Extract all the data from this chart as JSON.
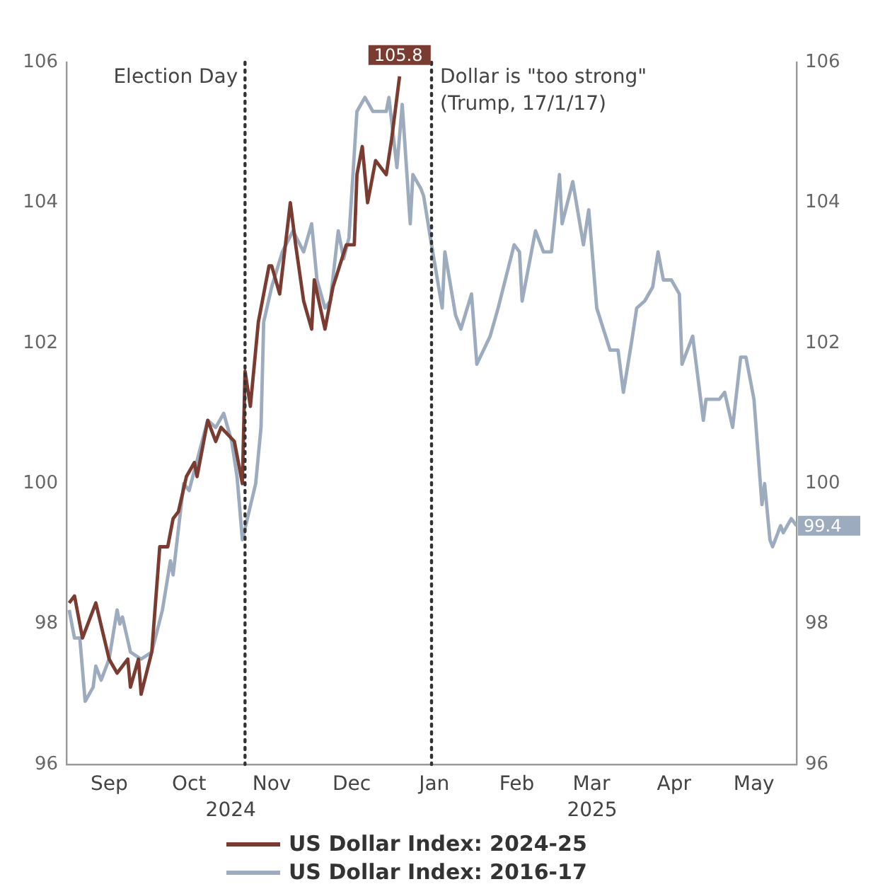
{
  "chart_data": {
    "type": "line",
    "xlim": [
      "2024-08-30",
      "2025-05-31"
    ],
    "xticks": [
      {
        "value": "2024-09-15",
        "label": "Sep"
      },
      {
        "value": "2024-10-15",
        "label": "Oct"
      },
      {
        "value": "2024-11-15",
        "label": "Nov"
      },
      {
        "value": "2024-12-15",
        "label": "Dec"
      },
      {
        "value": "2025-01-15",
        "label": "Jan"
      },
      {
        "value": "2025-02-15",
        "label": "Feb"
      },
      {
        "value": "2025-03-15",
        "label": "Mar"
      },
      {
        "value": "2025-04-15",
        "label": "Apr"
      },
      {
        "value": "2025-05-15",
        "label": "May"
      }
    ],
    "ylim": [
      96,
      106
    ],
    "yticks": [
      96,
      98,
      100,
      102,
      104,
      106
    ],
    "y2lim": [
      96,
      106
    ],
    "y2ticks": [
      96,
      98,
      100,
      102,
      104,
      106
    ],
    "grid": false,
    "legend": "bottom",
    "marker": "none",
    "line_style": "solid",
    "ref_lines": [
      {
        "axis": "x",
        "value": "2024-11-05",
        "label": "Election Day",
        "line_style": "dotted",
        "color": "#333333"
      },
      {
        "axis": "x",
        "value": "2025-01-14",
        "label": "Dollar is \"too strong\"\n(Trump, 17/1/17)",
        "line_style": "dotted",
        "color": "#333333"
      }
    ],
    "annotations": [
      "2024",
      "2025"
    ],
    "series": [
      {
        "name": "US Dollar Index: 2024-25",
        "color": "#7a3b30",
        "x": [
          "2024-08-31",
          "2024-09-02",
          "2024-09-05",
          "2024-09-10",
          "2024-09-15",
          "2024-09-18",
          "2024-09-22",
          "2024-09-23",
          "2024-09-26",
          "2024-09-27",
          "2024-10-01",
          "2024-10-04",
          "2024-10-07",
          "2024-10-09",
          "2024-10-11",
          "2024-10-14",
          "2024-10-17",
          "2024-10-18",
          "2024-10-22",
          "2024-10-25",
          "2024-10-27",
          "2024-11-01",
          "2024-11-02",
          "2024-11-04",
          "2024-11-05",
          "2024-11-07",
          "2024-11-10",
          "2024-11-14",
          "2024-11-15",
          "2024-11-18",
          "2024-11-22",
          "2024-11-24",
          "2024-11-27",
          "2024-11-30",
          "2024-12-01",
          "2024-12-05",
          "2024-12-08",
          "2024-12-13",
          "2024-12-16",
          "2024-12-17",
          "2024-12-19",
          "2024-12-21",
          "2024-12-24",
          "2024-12-28",
          "2024-12-30",
          "2025-01-02"
        ],
        "values": [
          98.3,
          98.4,
          97.8,
          98.3,
          97.5,
          97.3,
          97.5,
          97.1,
          97.5,
          97.0,
          97.6,
          99.1,
          99.1,
          99.5,
          99.6,
          100.1,
          100.3,
          100.1,
          100.9,
          100.6,
          100.8,
          100.6,
          100.4,
          100.0,
          101.6,
          101.1,
          102.3,
          103.1,
          103.1,
          102.7,
          104.0,
          103.4,
          102.6,
          102.2,
          102.9,
          102.2,
          102.8,
          103.4,
          103.4,
          104.4,
          104.8,
          104.0,
          104.6,
          104.4,
          104.9,
          105.8
        ],
        "value_labels": [
          null,
          null,
          null,
          null,
          null,
          null,
          null,
          null,
          null,
          null,
          null,
          null,
          null,
          null,
          null,
          null,
          null,
          null,
          null,
          null,
          null,
          null,
          null,
          null,
          null,
          null,
          null,
          null,
          null,
          null,
          null,
          null,
          null,
          null,
          null,
          null,
          null,
          null,
          null,
          null,
          null,
          null,
          null,
          null,
          null,
          "105.8"
        ]
      },
      {
        "name": "US Dollar Index: 2016-17",
        "color": "#9cabbd",
        "x": [
          "2024-08-31",
          "2024-09-02",
          "2024-09-04",
          "2024-09-06",
          "2024-09-09",
          "2024-09-10",
          "2024-09-12",
          "2024-09-15",
          "2024-09-18",
          "2024-09-19",
          "2024-09-20",
          "2024-09-23",
          "2024-09-27",
          "2024-10-01",
          "2024-10-05",
          "2024-10-08",
          "2024-10-09",
          "2024-10-13",
          "2024-10-15",
          "2024-10-22",
          "2024-10-25",
          "2024-10-28",
          "2024-10-31",
          "2024-11-02",
          "2024-11-04",
          "2024-11-09",
          "2024-11-11",
          "2024-11-12",
          "2024-11-15",
          "2024-11-19",
          "2024-11-23",
          "2024-11-27",
          "2024-11-30",
          "2024-12-02",
          "2024-12-05",
          "2024-12-07",
          "2024-12-10",
          "2024-12-12",
          "2024-12-14",
          "2024-12-17",
          "2024-12-20",
          "2024-12-23",
          "2024-12-25",
          "2024-12-28",
          "2024-12-29",
          "2025-01-01",
          "2025-01-03",
          "2025-01-06",
          "2025-01-07",
          "2025-01-10",
          "2025-01-11",
          "2025-01-14",
          "2025-01-18",
          "2025-01-19",
          "2025-01-23",
          "2025-01-25",
          "2025-01-29",
          "2025-01-31",
          "2025-02-05",
          "2025-02-08",
          "2025-02-14",
          "2025-02-16",
          "2025-02-17",
          "2025-02-22",
          "2025-02-25",
          "2025-02-28",
          "2025-03-03",
          "2025-03-04",
          "2025-03-08",
          "2025-03-12",
          "2025-03-14",
          "2025-03-17",
          "2025-03-22",
          "2025-03-25",
          "2025-03-27",
          "2025-03-30",
          "2025-04-01",
          "2025-04-04",
          "2025-04-07",
          "2025-04-09",
          "2025-04-11",
          "2025-04-14",
          "2025-04-17",
          "2025-04-18",
          "2025-04-22",
          "2025-04-26",
          "2025-04-27",
          "2025-05-02",
          "2025-05-04",
          "2025-05-07",
          "2025-05-10",
          "2025-05-12",
          "2025-05-15",
          "2025-05-18",
          "2025-05-19",
          "2025-05-21",
          "2025-05-22",
          "2025-05-25",
          "2025-05-26",
          "2025-05-29",
          "2025-05-31"
        ],
        "values": [
          98.2,
          97.8,
          97.8,
          96.9,
          97.1,
          97.4,
          97.2,
          97.5,
          98.2,
          98.0,
          98.1,
          97.6,
          97.5,
          97.6,
          98.2,
          98.9,
          98.7,
          100.0,
          99.9,
          100.9,
          100.8,
          101.0,
          100.6,
          100.1,
          99.2,
          100.0,
          100.8,
          102.3,
          102.8,
          103.3,
          103.6,
          103.3,
          103.7,
          102.9,
          102.5,
          102.6,
          103.6,
          103.2,
          103.5,
          105.3,
          105.5,
          105.3,
          105.3,
          105.3,
          105.5,
          104.5,
          105.4,
          103.7,
          104.4,
          104.2,
          104.1,
          103.4,
          102.5,
          103.3,
          102.4,
          102.2,
          102.7,
          101.7,
          102.1,
          102.5,
          103.4,
          103.3,
          102.6,
          103.6,
          103.3,
          103.3,
          104.4,
          103.7,
          104.3,
          103.4,
          103.9,
          102.5,
          101.9,
          101.9,
          101.3,
          102.0,
          102.5,
          102.6,
          102.8,
          103.3,
          102.9,
          102.9,
          102.7,
          101.7,
          102.1,
          100.9,
          101.2,
          101.2,
          101.3,
          100.8,
          101.8,
          101.8,
          101.2,
          99.7,
          100.0,
          99.2,
          99.1,
          99.4,
          99.3,
          99.5,
          99.4
        ],
        "value_labels": [
          null,
          null,
          null,
          null,
          null,
          null,
          null,
          null,
          null,
          null,
          null,
          null,
          null,
          null,
          null,
          null,
          null,
          null,
          null,
          null,
          null,
          null,
          null,
          null,
          null,
          null,
          null,
          null,
          null,
          null,
          null,
          null,
          null,
          null,
          null,
          null,
          null,
          null,
          null,
          null,
          null,
          null,
          null,
          null,
          null,
          null,
          null,
          null,
          null,
          null,
          null,
          null,
          null,
          null,
          null,
          null,
          null,
          null,
          null,
          null,
          null,
          null,
          null,
          null,
          null,
          null,
          null,
          null,
          null,
          null,
          null,
          null,
          null,
          null,
          null,
          null,
          null,
          null,
          null,
          null,
          null,
          null,
          null,
          null,
          null,
          null,
          null,
          null,
          null,
          null,
          null,
          null,
          null,
          null,
          null,
          null,
          null,
          null,
          null,
          null,
          "99.4"
        ]
      }
    ]
  }
}
